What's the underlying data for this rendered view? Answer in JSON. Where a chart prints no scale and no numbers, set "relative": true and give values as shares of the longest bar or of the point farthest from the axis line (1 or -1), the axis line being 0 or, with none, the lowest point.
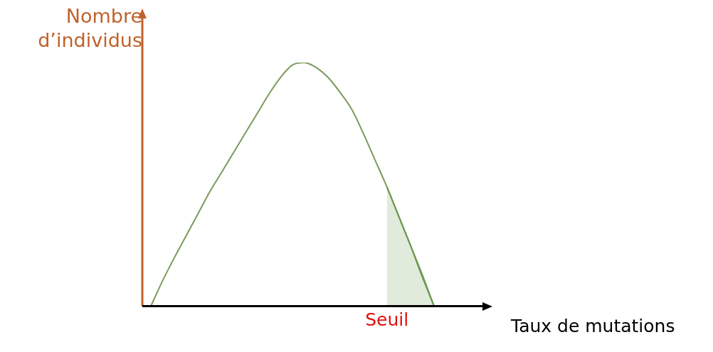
{
  "chart_data": {
    "type": "line",
    "relative": true,
    "xlabel": "Taux de mutations",
    "ylabel": "Nombre d’individus",
    "annotations": [
      "Seuil"
    ],
    "marker": "none",
    "line_style": "solid",
    "categories": [
      null,
      null,
      null,
      null,
      null,
      null,
      null,
      null,
      null,
      null,
      null,
      null,
      null,
      null,
      null,
      null,
      null,
      null,
      null,
      null,
      null,
      null,
      null,
      null,
      null
    ],
    "series": [
      {
        "type": "area",
        "color": "#6a9a4f",
        "values": [
          null,
          null,
          null,
          null,
          null,
          null,
          null,
          null,
          null,
          null,
          null,
          null,
          null,
          null,
          null,
          null,
          null,
          null,
          null,
          null,
          0.49,
          0.37,
          0.25,
          0.12,
          0
        ]
      },
      {
        "color": "#7a9a5e",
        "values": [
          0,
          0.105,
          0.2,
          0.29,
          0.38,
          0.47,
          0.55,
          0.63,
          0.71,
          0.79,
          0.87,
          0.94,
          0.99,
          1,
          0.98,
          0.94,
          0.88,
          0.81,
          0.71,
          0.6,
          0.49,
          0.37,
          0.25,
          0.13,
          0
        ]
      }
    ]
  }
}
